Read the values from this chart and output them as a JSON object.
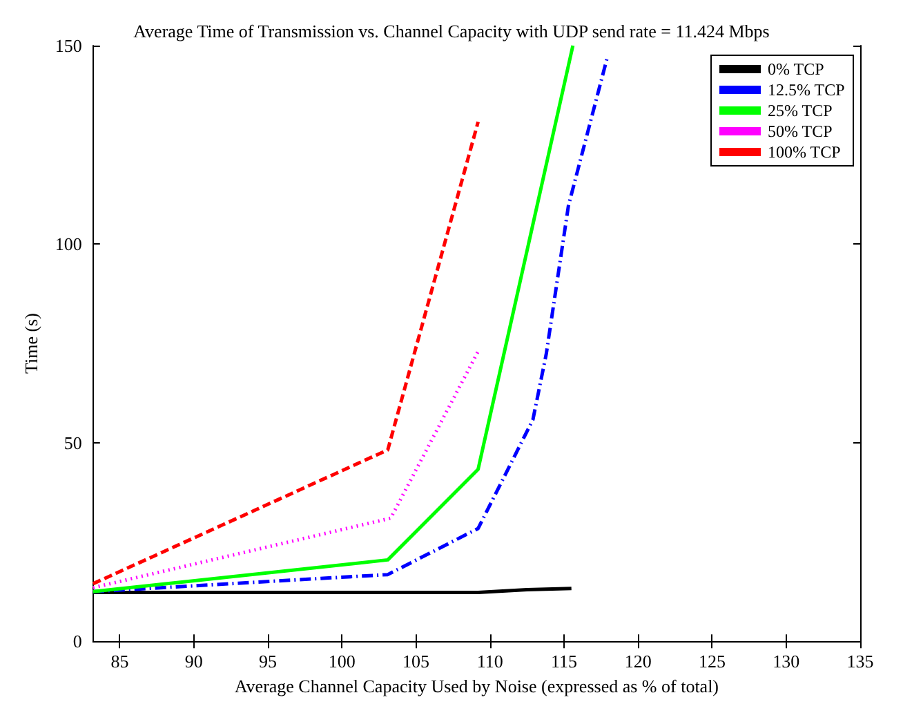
{
  "chart_data": {
    "type": "line",
    "title": "Average Time of Transmission vs. Channel Capacity with UDP send rate = 11.424 Mbps",
    "xlabel": "Average Channel Capacity Used by Noise (expressed as % of total)",
    "ylabel": "Time (s)",
    "xlim": [
      83.2,
      135
    ],
    "xticks": [
      85,
      90,
      95,
      100,
      105,
      110,
      115,
      120,
      125,
      130,
      135
    ],
    "ylim": [
      0,
      150
    ],
    "yticks": [
      0,
      50,
      100,
      150
    ],
    "grid": false,
    "legend": "top right",
    "marker": "none",
    "series": [
      {
        "name": "0% TCP",
        "color": "#000000",
        "line_style": "solid",
        "x": [
          83.2,
          103.1,
          109.2,
          112.5,
          115.5
        ],
        "values": [
          12.3,
          12.3,
          12.3,
          13,
          13.3
        ]
      },
      {
        "name": "12.5% TCP",
        "color": "#0000ff",
        "line_style": "dashdot",
        "x": [
          83.2,
          103.1,
          109.2,
          112.9,
          113.8,
          115.3,
          117.9
        ],
        "values": [
          12.5,
          16.8,
          28.4,
          55.8,
          72.3,
          109.7,
          146.7
        ]
      },
      {
        "name": "25% TCP",
        "color": "#00ff00",
        "line_style": "solid",
        "x": [
          83.2,
          103.1,
          109.2,
          115.6
        ],
        "values": [
          12.5,
          20.5,
          43.3,
          150
        ]
      },
      {
        "name": "50% TCP",
        "color": "#ff00ff",
        "line_style": "dotted",
        "x": [
          83.2,
          103.3,
          109.2
        ],
        "values": [
          13.5,
          31,
          73
        ]
      },
      {
        "name": "100% TCP",
        "color": "#ff0000",
        "line_style": "dashed",
        "x": [
          83.2,
          103.1,
          109.2
        ],
        "values": [
          14.5,
          48.2,
          130.8
        ]
      }
    ]
  }
}
